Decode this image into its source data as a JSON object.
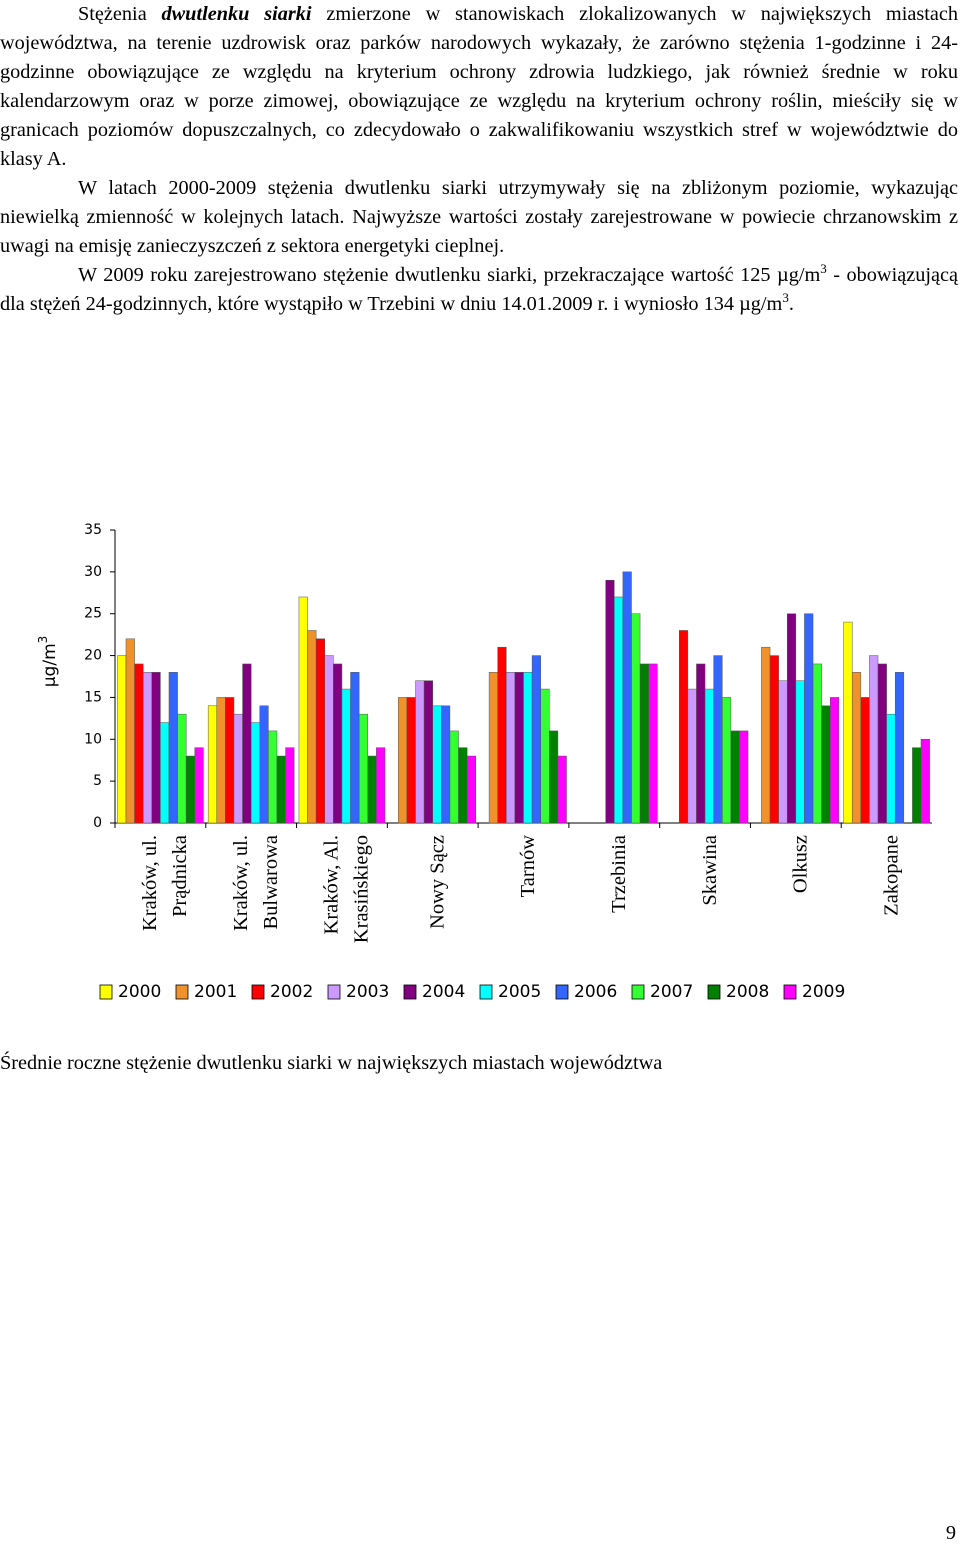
{
  "paragraphs": [
    [
      {
        "text": "Stężenia "
      },
      {
        "text": "dwutlenku siarki",
        "em": true
      },
      {
        "text": " zmierzone w stanowiskach zlokalizowanych w największych miastach województwa, na terenie uzdrowisk oraz parków narodowych wykazały, że zarówno stężenia 1-godzinne i 24-godzinne obowiązujące ze względu na kryterium ochrony zdrowia ludzkiego, jak również średnie w roku kalendarzowym oraz w porze zimowej, obowiązujące ze względu na kryterium ochrony roślin, mieściły się w granicach poziomów dopuszczalnych, co zdecydowało o zakwalifikowaniu wszystkich stref w województwie do klasy A."
      }
    ],
    [
      {
        "text": "W latach 2000-2009 stężenia dwutlenku siarki utrzymywały się na zbliżonym poziomie, wykazując niewielką zmienność w kolejnych latach. Najwyższe wartości zostały zarejestrowane w powiecie chrzanowskim z uwagi na emisję zanieczyszczeń z sektora energetyki cieplnej."
      }
    ],
    [
      {
        "text": "W 2009 roku zarejestrowano stężenie dwutlenku siarki, przekraczające wartość 125 µg/m"
      },
      {
        "text": "3",
        "sup": true
      },
      {
        "text": " - obowiązującą dla stężeń 24-godzinnych, które wystąpiło w Trzebini w dniu 14.01.2009 r. i wyniosło 134 µg/m"
      },
      {
        "text": "3",
        "sup": true
      },
      {
        "text": "."
      }
    ]
  ],
  "chart_data": {
    "type": "bar",
    "ylabel": "µg/m",
    "ylabel_sup": "3",
    "categories": [
      [
        "Kraków, ul.",
        "Prądnicka"
      ],
      [
        "Kraków, ul.",
        "Bulwarowa"
      ],
      [
        "Kraków, Al.",
        "Krasińskiego"
      ],
      [
        "Nowy Sącz"
      ],
      [
        "Tarnów"
      ],
      [
        "Trzebinia"
      ],
      [
        "Skawina"
      ],
      [
        "Olkusz"
      ],
      [
        "Zakopane"
      ]
    ],
    "ylim": [
      0,
      35
    ],
    "yticks": [
      0,
      5,
      10,
      15,
      20,
      25,
      30,
      35
    ],
    "series": [
      {
        "name": "2000",
        "color": "#ffff00",
        "values": [
          20,
          14,
          27,
          null,
          null,
          null,
          null,
          null,
          24
        ]
      },
      {
        "name": "2001",
        "color": "#f0922b",
        "values": [
          22,
          15,
          23,
          15,
          18,
          null,
          null,
          21,
          18
        ]
      },
      {
        "name": "2002",
        "color": "#ff0000",
        "values": [
          19,
          15,
          22,
          15,
          21,
          null,
          23,
          20,
          15
        ]
      },
      {
        "name": "2003",
        "color": "#cc99ff",
        "values": [
          18,
          13,
          20,
          17,
          18,
          null,
          16,
          17,
          20
        ]
      },
      {
        "name": "2004",
        "color": "#800080",
        "values": [
          18,
          19,
          19,
          17,
          18,
          29,
          19,
          25,
          19
        ]
      },
      {
        "name": "2005",
        "color": "#00ffff",
        "values": [
          12,
          12,
          16,
          14,
          18,
          27,
          16,
          17,
          13
        ]
      },
      {
        "name": "2006",
        "color": "#3366ff",
        "values": [
          18,
          14,
          18,
          14,
          20,
          30,
          20,
          25,
          18
        ]
      },
      {
        "name": "2007",
        "color": "#33ff33",
        "values": [
          13,
          11,
          13,
          11,
          16,
          25,
          15,
          19,
          null
        ]
      },
      {
        "name": "2008",
        "color": "#008000",
        "values": [
          8,
          8,
          8,
          9,
          11,
          19,
          11,
          14,
          9
        ]
      },
      {
        "name": "2009",
        "color": "#ff00ff",
        "values": [
          9,
          9,
          9,
          8,
          8,
          19,
          11,
          15,
          10
        ]
      }
    ]
  },
  "caption": "Średnie roczne stężenie dwutlenku siarki w największych miastach województwa",
  "page_number": "9"
}
